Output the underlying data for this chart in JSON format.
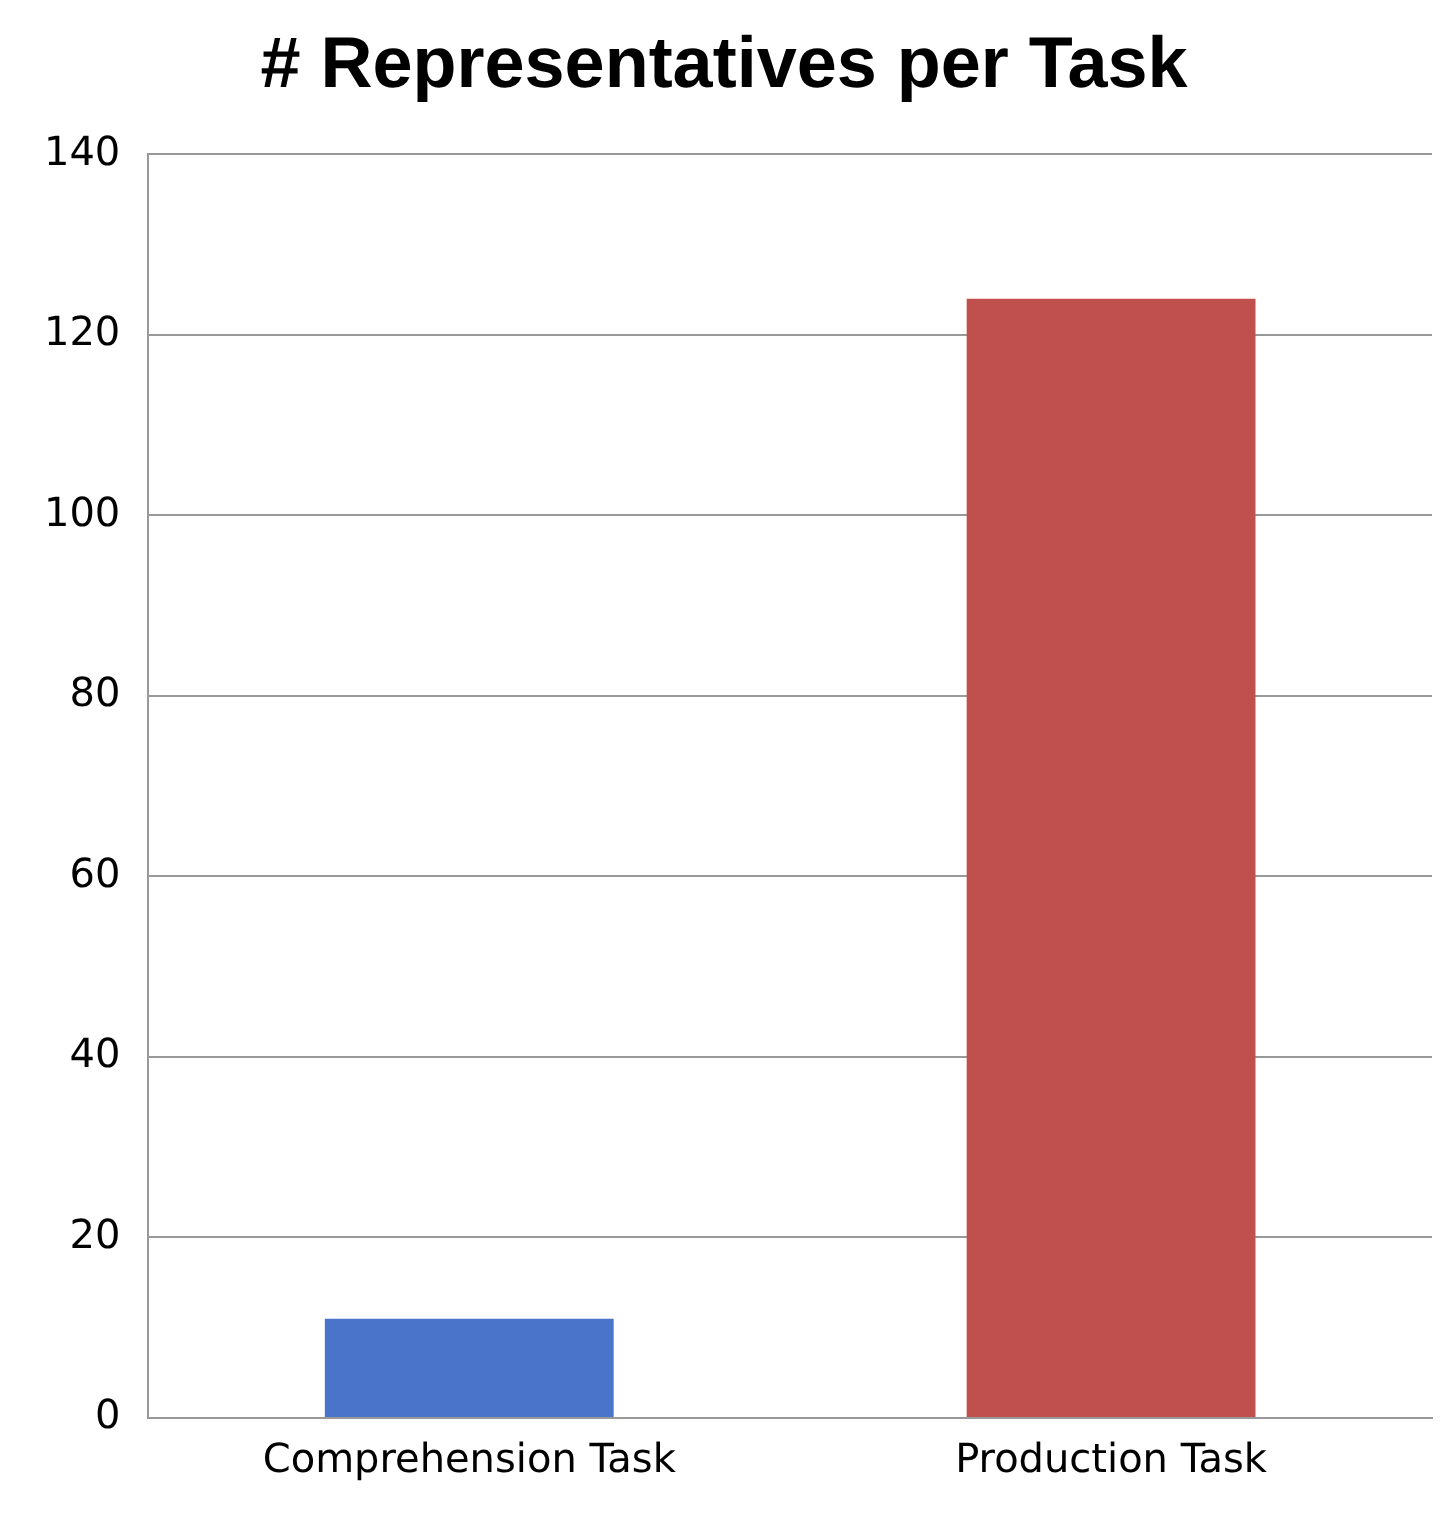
{
  "chart_data": {
    "type": "bar",
    "title": "# Representatives per Task",
    "categories": [
      "Comprehension Task",
      "Production Task"
    ],
    "values": [
      11,
      124
    ],
    "colors": [
      "#4a74c9",
      "#c0504d"
    ],
    "ylim": [
      0,
      140
    ],
    "yticks": [
      0,
      20,
      40,
      60,
      80,
      100,
      120,
      140
    ],
    "grid": "y",
    "legend": false
  }
}
